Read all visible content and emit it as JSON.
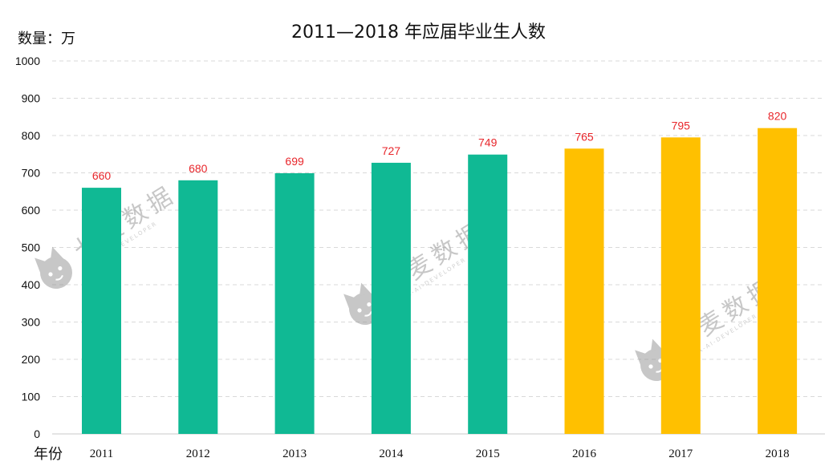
{
  "chart_data": {
    "type": "bar",
    "title": "2011—2018 年应届毕业生人数",
    "ylabel": "数量：万",
    "xlabel": "年份",
    "categories": [
      "2011",
      "2012",
      "2013",
      "2014",
      "2015",
      "2016",
      "2017",
      "2018"
    ],
    "values": [
      660,
      680,
      699,
      727,
      749,
      765,
      795,
      820
    ],
    "bar_colors": [
      "#10b994",
      "#10b994",
      "#10b994",
      "#10b994",
      "#10b994",
      "#ffc000",
      "#ffc000",
      "#ffc000"
    ],
    "data_label_color": "#e8262b",
    "ylim": [
      0,
      1000
    ],
    "yticks": [
      0,
      100,
      200,
      300,
      400,
      500,
      600,
      700,
      800,
      900,
      1000
    ],
    "grid": true,
    "legend": "none"
  },
  "watermark": {
    "text": "七麦数据",
    "subtext": "DATA-AI-DEVELOPER",
    "icon": "cat-logo-icon"
  }
}
